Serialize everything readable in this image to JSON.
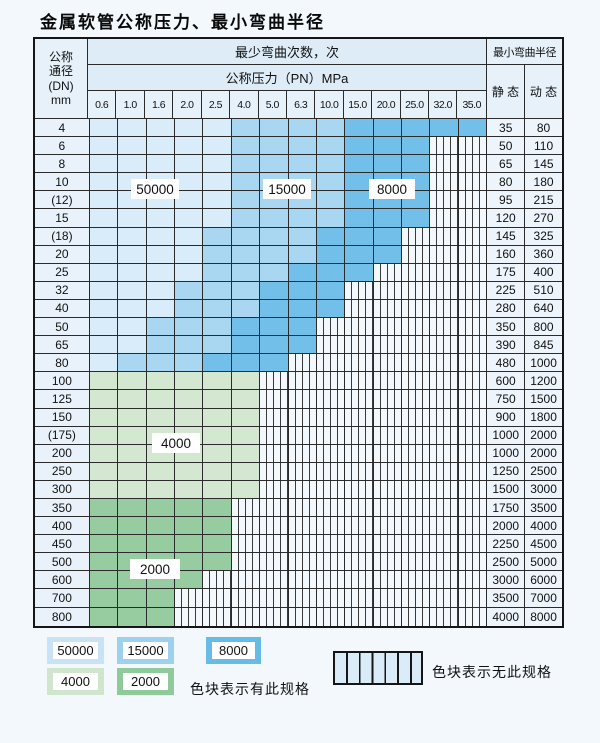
{
  "title": "金属软管公称压力、最小弯曲半径",
  "table": {
    "corner": {
      "line1": "公称",
      "line2": "通径",
      "line3": "(DN)",
      "line4": "mm"
    },
    "bend_times_header": "最少弯曲次数，次",
    "pressure_header": "公称压力（PN）MPa",
    "radius_header": "最小弯曲半径",
    "static_header": "静 态",
    "dynamic_header": "动 态",
    "pressure_columns": [
      "0.6",
      "1.0",
      "1.6",
      "2.0",
      "2.5",
      "4.0",
      "5.0",
      "6.3",
      "10.0",
      "15.0",
      "20.0",
      "25.0",
      "32.0",
      "35.0"
    ],
    "rows": [
      {
        "dn": "4",
        "bands": [
          [
            "b1",
            5
          ],
          [
            "b2",
            4
          ],
          [
            "b3",
            5
          ]
        ],
        "static": "35",
        "dynamic": "80"
      },
      {
        "dn": "6",
        "bands": [
          [
            "b1",
            5
          ],
          [
            "b2",
            4
          ],
          [
            "b3",
            3
          ]
        ],
        "static": "50",
        "dynamic": "110"
      },
      {
        "dn": "8",
        "bands": [
          [
            "b1",
            5
          ],
          [
            "b2",
            4
          ],
          [
            "b3",
            3
          ]
        ],
        "static": "65",
        "dynamic": "145"
      },
      {
        "dn": "10",
        "bands": [
          [
            "b1",
            5
          ],
          [
            "b2",
            4
          ],
          [
            "b3",
            3
          ]
        ],
        "static": "80",
        "dynamic": "180"
      },
      {
        "dn": "(12)",
        "bands": [
          [
            "b1",
            5
          ],
          [
            "b2",
            4
          ],
          [
            "b3",
            3
          ]
        ],
        "static": "95",
        "dynamic": "215"
      },
      {
        "dn": "15",
        "bands": [
          [
            "b1",
            5
          ],
          [
            "b2",
            4
          ],
          [
            "b3",
            3
          ]
        ],
        "static": "120",
        "dynamic": "270"
      },
      {
        "dn": "(18)",
        "bands": [
          [
            "b1",
            4
          ],
          [
            "b2",
            4
          ],
          [
            "b3",
            3
          ]
        ],
        "static": "145",
        "dynamic": "325"
      },
      {
        "dn": "20",
        "bands": [
          [
            "b1",
            4
          ],
          [
            "b2",
            4
          ],
          [
            "b3",
            3
          ]
        ],
        "static": "160",
        "dynamic": "360"
      },
      {
        "dn": "25",
        "bands": [
          [
            "b1",
            4
          ],
          [
            "b2",
            3
          ],
          [
            "b3",
            3
          ]
        ],
        "static": "175",
        "dynamic": "400"
      },
      {
        "dn": "32",
        "bands": [
          [
            "b1",
            3
          ],
          [
            "b2",
            3
          ],
          [
            "b3",
            3
          ]
        ],
        "static": "225",
        "dynamic": "510"
      },
      {
        "dn": "40",
        "bands": [
          [
            "b1",
            3
          ],
          [
            "b2",
            3
          ],
          [
            "b3",
            3
          ]
        ],
        "static": "280",
        "dynamic": "640"
      },
      {
        "dn": "50",
        "bands": [
          [
            "b1",
            2
          ],
          [
            "b2",
            3
          ],
          [
            "b3",
            3
          ]
        ],
        "static": "350",
        "dynamic": "800"
      },
      {
        "dn": "65",
        "bands": [
          [
            "b1",
            2
          ],
          [
            "b2",
            3
          ],
          [
            "b3",
            3
          ]
        ],
        "static": "390",
        "dynamic": "845"
      },
      {
        "dn": "80",
        "bands": [
          [
            "b1",
            1
          ],
          [
            "b2",
            3
          ],
          [
            "b3",
            3
          ]
        ],
        "static": "480",
        "dynamic": "1000"
      },
      {
        "dn": "100",
        "bands": [
          [
            "g1",
            6
          ]
        ],
        "static": "600",
        "dynamic": "1200"
      },
      {
        "dn": "125",
        "bands": [
          [
            "g1",
            6
          ]
        ],
        "static": "750",
        "dynamic": "1500"
      },
      {
        "dn": "150",
        "bands": [
          [
            "g1",
            6
          ]
        ],
        "static": "900",
        "dynamic": "1800"
      },
      {
        "dn": "(175)",
        "bands": [
          [
            "g1",
            6
          ]
        ],
        "static": "1000",
        "dynamic": "2000"
      },
      {
        "dn": "200",
        "bands": [
          [
            "g1",
            6
          ]
        ],
        "static": "1000",
        "dynamic": "2000"
      },
      {
        "dn": "250",
        "bands": [
          [
            "g1",
            6
          ]
        ],
        "static": "1250",
        "dynamic": "2500"
      },
      {
        "dn": "300",
        "bands": [
          [
            "g1",
            6
          ]
        ],
        "static": "1500",
        "dynamic": "3000"
      },
      {
        "dn": "350",
        "bands": [
          [
            "g2",
            5
          ]
        ],
        "static": "1750",
        "dynamic": "3500"
      },
      {
        "dn": "400",
        "bands": [
          [
            "g2",
            5
          ]
        ],
        "static": "2000",
        "dynamic": "4000"
      },
      {
        "dn": "450",
        "bands": [
          [
            "g2",
            5
          ]
        ],
        "static": "2250",
        "dynamic": "4500"
      },
      {
        "dn": "500",
        "bands": [
          [
            "g2",
            5
          ]
        ],
        "static": "2500",
        "dynamic": "5000"
      },
      {
        "dn": "600",
        "bands": [
          [
            "g2",
            4
          ]
        ],
        "static": "3000",
        "dynamic": "6000"
      },
      {
        "dn": "700",
        "bands": [
          [
            "g2",
            3
          ]
        ],
        "static": "3500",
        "dynamic": "7000"
      },
      {
        "dn": "800",
        "bands": [
          [
            "g2",
            3
          ]
        ],
        "static": "4000",
        "dynamic": "8000"
      }
    ]
  },
  "zones": {
    "z50000": "50000",
    "z15000": "15000",
    "z8000": "8000",
    "z4000": "4000",
    "z2000": "2000"
  },
  "legend": {
    "sw50000": "50000",
    "sw15000": "15000",
    "sw8000": "8000",
    "sw4000": "4000",
    "sw2000": "2000",
    "available_note": "色块表示有此规格",
    "unavailable_note": "色块表示无此规格"
  },
  "colors": {
    "cycles_50000": "#d9ecf9",
    "cycles_15000": "#a9d6f1",
    "cycles_8000": "#72c0e9",
    "cycles_4000": "#d4e7d0",
    "cycles_2000": "#97cca0",
    "no_spec_bg": "#f3f8fc"
  }
}
